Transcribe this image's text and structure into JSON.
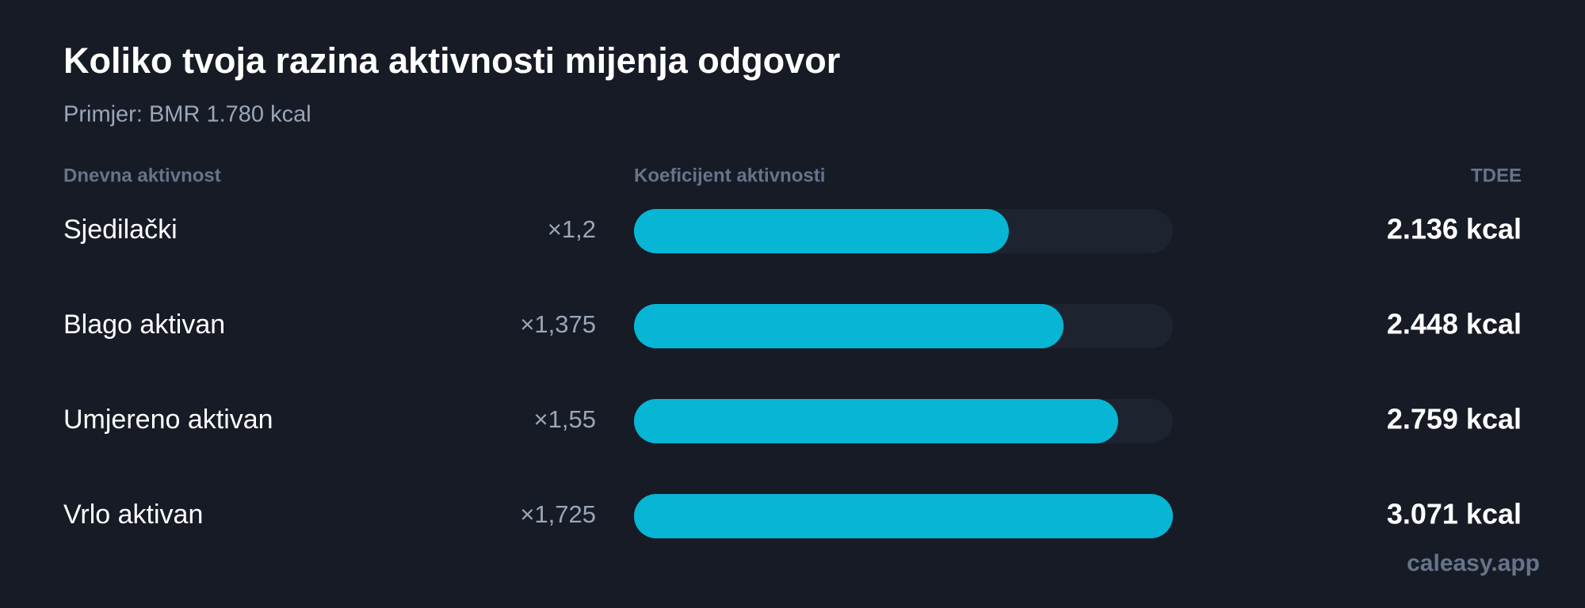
{
  "chart_data": {
    "type": "bar",
    "title": "Koliko tvoja razina aktivnosti mijenja odgovor",
    "subtitle": "Primjer: BMR 1.780 kcal",
    "column_headers": [
      "Dnevna aktivnost",
      "Koeficijent aktivnosti",
      "TDEE"
    ],
    "categories": [
      "Sjedilački",
      "Blago aktivan",
      "Umjereno aktivan",
      "Vrlo aktivan"
    ],
    "multipliers": [
      {
        "value": 1.2,
        "label": "×1,2"
      },
      {
        "value": 1.375,
        "label": "×1,375"
      },
      {
        "value": 1.55,
        "label": "×1,55"
      },
      {
        "value": 1.725,
        "label": "×1,725"
      }
    ],
    "values": [
      2136,
      2448,
      2759,
      3071
    ],
    "value_labels": [
      "2.136 kcal",
      "2.448 kcal",
      "2.759 kcal",
      "3.071 kcal"
    ],
    "xlim": [
      0,
      3071
    ],
    "color": "#06b6d4",
    "track_color": "#1e2330",
    "watermark": "caleasy.app"
  }
}
